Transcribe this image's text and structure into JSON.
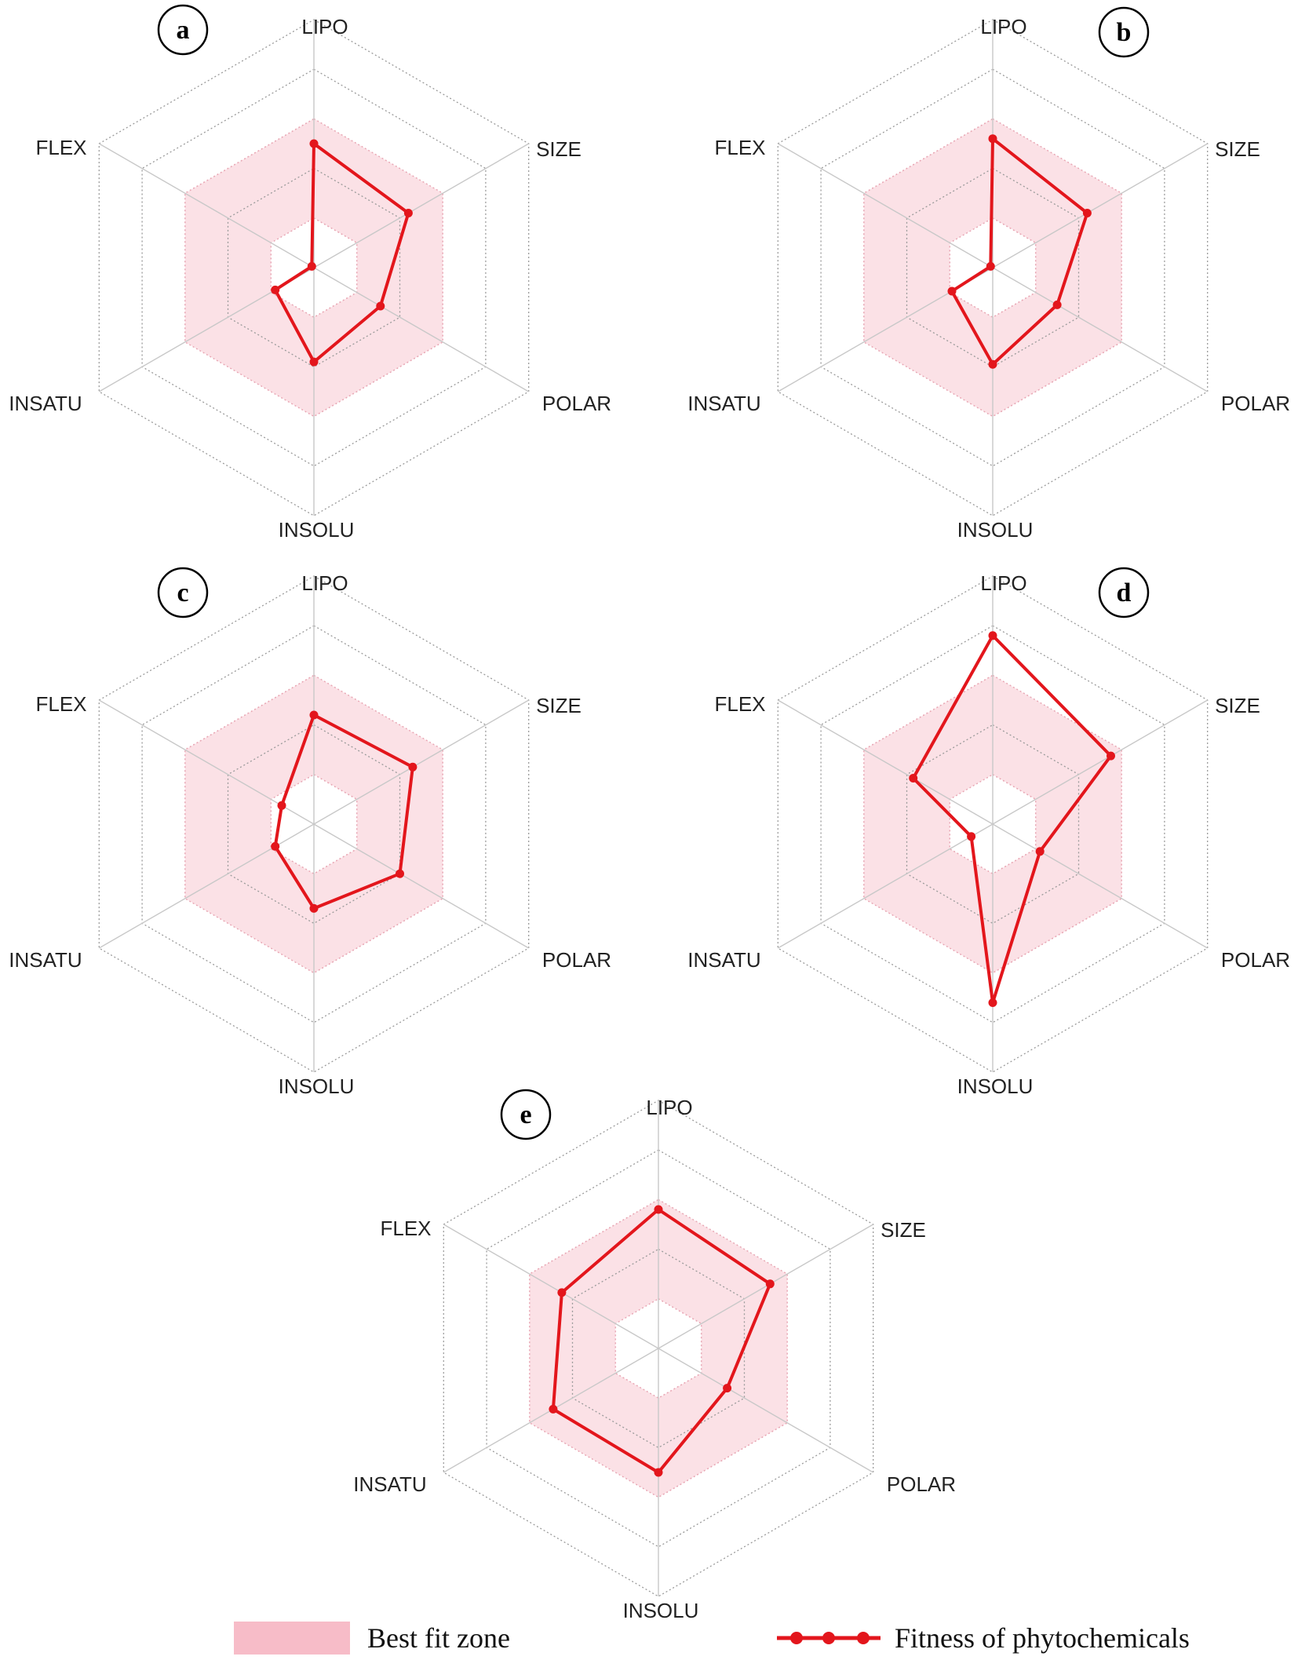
{
  "chart_data": [
    {
      "type": "radar",
      "panel_label": "a",
      "axes": [
        "LIPO",
        "SIZE",
        "POLAR",
        "INSOLU",
        "INSATU",
        "FLEX"
      ],
      "rlim": [
        0,
        1
      ],
      "best_fit_zone": {
        "inner": 0.2,
        "outer": 0.6
      },
      "series": [
        {
          "values": [
            0.5,
            0.44,
            0.31,
            0.38,
            0.18,
            0.01
          ]
        }
      ]
    },
    {
      "type": "radar",
      "panel_label": "b",
      "axes": [
        "LIPO",
        "SIZE",
        "POLAR",
        "INSOLU",
        "INSATU",
        "FLEX"
      ],
      "rlim": [
        0,
        1
      ],
      "best_fit_zone": {
        "inner": 0.2,
        "outer": 0.6
      },
      "series": [
        {
          "values": [
            0.52,
            0.44,
            0.3,
            0.39,
            0.19,
            0.01
          ]
        }
      ]
    },
    {
      "type": "radar",
      "panel_label": "c",
      "axes": [
        "LIPO",
        "SIZE",
        "POLAR",
        "INSOLU",
        "INSATU",
        "FLEX"
      ],
      "rlim": [
        0,
        1
      ],
      "best_fit_zone": {
        "inner": 0.2,
        "outer": 0.6
      },
      "series": [
        {
          "values": [
            0.44,
            0.46,
            0.4,
            0.34,
            0.18,
            0.15
          ]
        }
      ]
    },
    {
      "type": "radar",
      "panel_label": "d",
      "axes": [
        "LIPO",
        "SIZE",
        "POLAR",
        "INSOLU",
        "INSATU",
        "FLEX"
      ],
      "rlim": [
        0,
        1
      ],
      "best_fit_zone": {
        "inner": 0.2,
        "outer": 0.6
      },
      "series": [
        {
          "values": [
            0.76,
            0.55,
            0.22,
            0.72,
            0.1,
            0.37
          ]
        }
      ]
    },
    {
      "type": "radar",
      "panel_label": "e",
      "axes": [
        "LIPO",
        "SIZE",
        "POLAR",
        "INSOLU",
        "INSATU",
        "FLEX"
      ],
      "rlim": [
        0,
        1
      ],
      "best_fit_zone": {
        "inner": 0.2,
        "outer": 0.6
      },
      "series": [
        {
          "values": [
            0.56,
            0.52,
            0.32,
            0.5,
            0.49,
            0.45
          ]
        }
      ]
    }
  ],
  "legend": {
    "best_fit_label": "Best fit zone",
    "series_label": "Fitness of phytochemicals"
  },
  "colors": {
    "best_fit_fill": "#f7bcc8",
    "series": "#e3161c",
    "grid": "#9a9a9a"
  }
}
